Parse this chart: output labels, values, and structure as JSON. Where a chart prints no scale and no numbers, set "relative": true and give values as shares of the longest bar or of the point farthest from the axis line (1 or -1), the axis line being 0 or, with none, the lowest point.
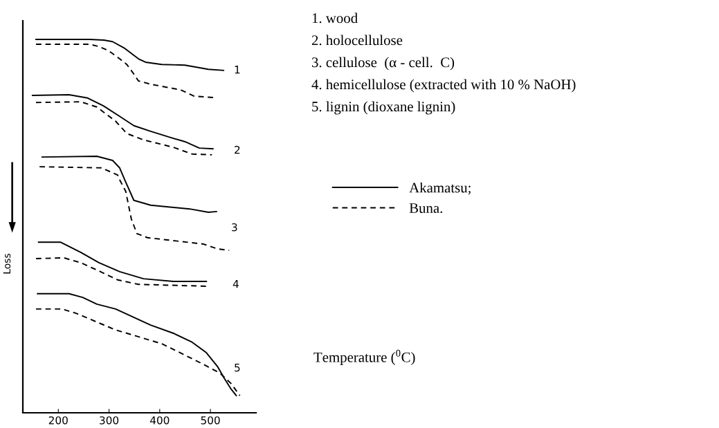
{
  "chart_data": {
    "type": "line",
    "relative": true,
    "xlabel": "Temperature ($^{0}$C)",
    "ylabel": "Loss",
    "xlim": [
      130,
      590
    ],
    "xticks": [
      200,
      300,
      400,
      500
    ],
    "grid": false,
    "legend": "right",
    "marker": "none",
    "series": [
      {
        "name": "Akamatsu;",
        "color": "#000000",
        "line_style": "solid",
        "x": [
          156,
          262,
          290,
          307,
          331,
          358,
          372,
          404,
          450,
          496,
          526
        ],
        "values": [
          1.0,
          1.0,
          0.998,
          0.994,
          0.976,
          0.948,
          0.939,
          0.933,
          0.931,
          0.92,
          0.917
        ]
      },
      {
        "name": "Buna.",
        "color": "#000000",
        "line_style": "dashed",
        "x": [
          156,
          262,
          280,
          299,
          321,
          335,
          347,
          358,
          382,
          441,
          468,
          509
        ],
        "values": [
          0.987,
          0.987,
          0.981,
          0.97,
          0.948,
          0.933,
          0.911,
          0.889,
          0.88,
          0.865,
          0.848,
          0.844
        ]
      },
      {
        "color": "#000000",
        "line_style": "solid",
        "x": [
          149,
          221,
          258,
          289,
          321,
          349,
          382,
          417,
          450,
          478,
          505
        ],
        "values": [
          0.85,
          0.852,
          0.843,
          0.822,
          0.794,
          0.769,
          0.754,
          0.739,
          0.726,
          0.709,
          0.707
        ]
      },
      {
        "color": "#000000",
        "line_style": "dashed",
        "x": [
          156,
          244,
          276,
          313,
          335,
          368,
          427,
          464,
          503
        ],
        "values": [
          0.831,
          0.833,
          0.819,
          0.781,
          0.748,
          0.731,
          0.711,
          0.693,
          0.691
        ]
      },
      {
        "color": "#000000",
        "line_style": "solid",
        "x": [
          168,
          276,
          307,
          321,
          331,
          349,
          382,
          459,
          496,
          512
        ],
        "values": [
          0.685,
          0.687,
          0.676,
          0.656,
          0.624,
          0.569,
          0.556,
          0.546,
          0.537,
          0.539
        ]
      },
      {
        "color": "#000000",
        "line_style": "dashed",
        "x": [
          163,
          285,
          317,
          321,
          333,
          344,
          355,
          376,
          486,
          514,
          537
        ],
        "values": [
          0.659,
          0.656,
          0.637,
          0.624,
          0.593,
          0.519,
          0.48,
          0.469,
          0.452,
          0.439,
          0.435
        ]
      },
      {
        "color": "#000000",
        "line_style": "solid",
        "x": [
          161,
          204,
          244,
          280,
          321,
          368,
          427,
          492
        ],
        "values": [
          0.457,
          0.457,
          0.43,
          0.402,
          0.378,
          0.359,
          0.352,
          0.352
        ]
      },
      {
        "color": "#000000",
        "line_style": "dashed",
        "x": [
          156,
          211,
          244,
          280,
          317,
          358,
          492
        ],
        "values": [
          0.413,
          0.415,
          0.402,
          0.38,
          0.356,
          0.344,
          0.339
        ]
      },
      {
        "color": "#000000",
        "line_style": "solid",
        "x": [
          159,
          221,
          248,
          276,
          313,
          382,
          427,
          464,
          492,
          514,
          527,
          541,
          551
        ],
        "values": [
          0.319,
          0.319,
          0.309,
          0.291,
          0.278,
          0.235,
          0.213,
          0.189,
          0.161,
          0.124,
          0.093,
          0.063,
          0.046
        ]
      },
      {
        "color": "#000000",
        "line_style": "dashed",
        "x": [
          156,
          207,
          234,
          313,
          404,
          486,
          519,
          541,
          558
        ],
        "values": [
          0.278,
          0.278,
          0.267,
          0.222,
          0.185,
          0.13,
          0.106,
          0.078,
          0.046
        ]
      }
    ],
    "annotations": [
      "1",
      "2",
      "3",
      "4",
      "5",
      "1. wood",
      "2. holocellulose",
      "3. cellulose  (α - cell.  C)",
      "4. hemicellulose (extracted with 10 % NaOH)",
      "5. lignin (dioxane lignin)"
    ]
  }
}
